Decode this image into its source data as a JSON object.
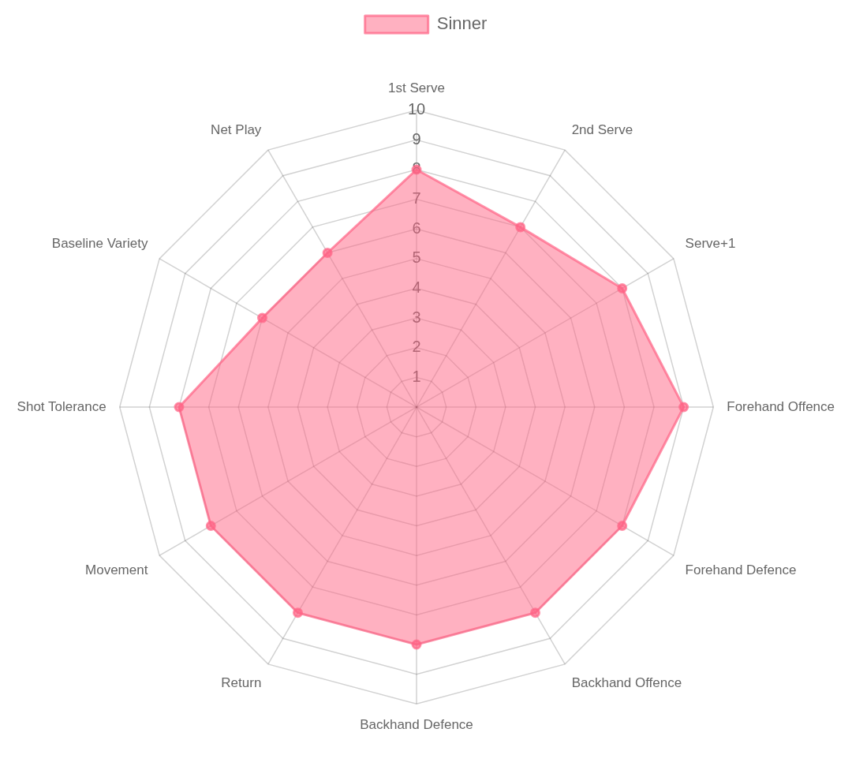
{
  "chart_data": {
    "type": "radar",
    "categories": [
      "1st Serve",
      "2nd Serve",
      "Serve+1",
      "Forehand Offence",
      "Forehand Defence",
      "Backhand Offence",
      "Backhand Defence",
      "Return",
      "Movement",
      "Shot Tolerance",
      "Baseline Variety",
      "Net Play"
    ],
    "series": [
      {
        "name": "Sinner",
        "color": "#ff6384",
        "values": [
          8,
          7,
          8,
          9,
          8,
          8,
          8,
          8,
          8,
          8,
          6,
          6
        ]
      }
    ],
    "ylim": [
      0,
      10
    ],
    "yticks": [
      1,
      2,
      3,
      4,
      5,
      6,
      7,
      8,
      9,
      10
    ],
    "grid": true,
    "legend": "top",
    "marker": "circle"
  }
}
